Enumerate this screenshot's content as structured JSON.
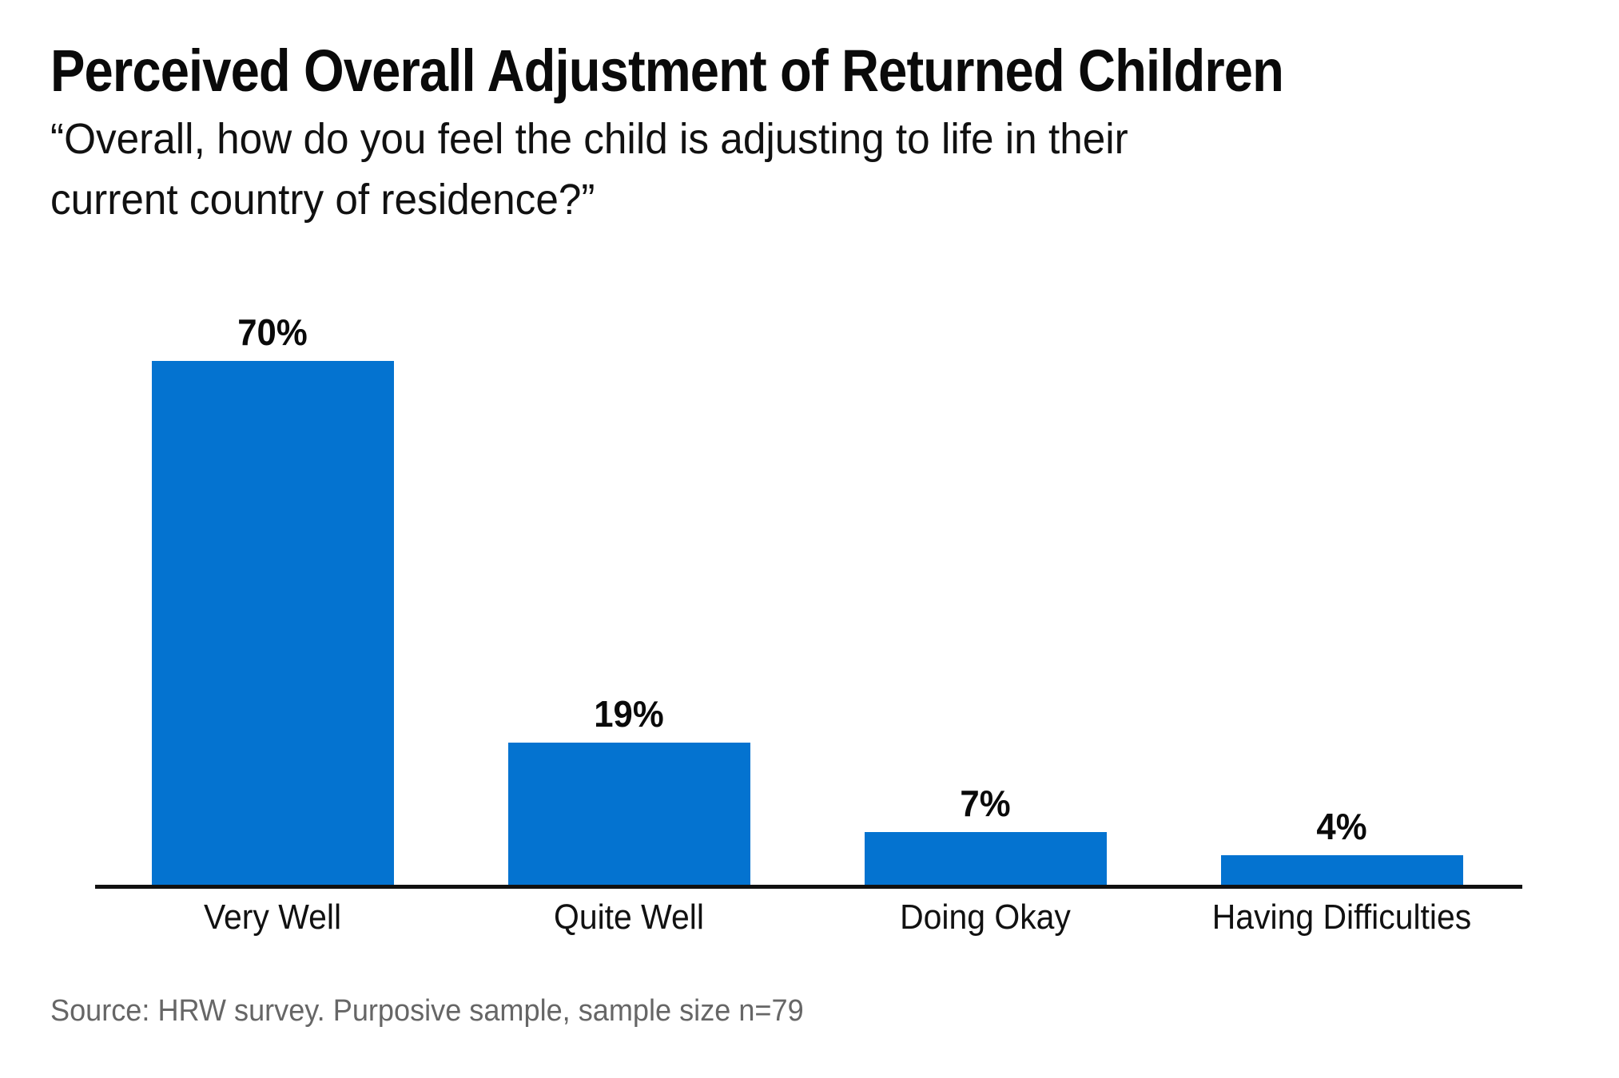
{
  "chart_data": {
    "type": "bar",
    "title": "Perceived Overall Adjustment of Returned Children",
    "subtitle": "“Overall, how do you feel the child is adjusting to life in their current country of residence?”",
    "subtitle_lines": [
      "“Overall, how do you feel the child is adjusting to life in their",
      "current country of residence?”"
    ],
    "categories": [
      "Very Well",
      "Quite Well",
      "Doing Okay",
      "Having Difficulties"
    ],
    "values": [
      70,
      19,
      7,
      4
    ],
    "value_labels": [
      "70%",
      "19%",
      "7%",
      "4%"
    ],
    "unit": "%",
    "ylim": [
      0,
      75
    ],
    "grid": false,
    "legend": false,
    "bar_color": "#0473d0",
    "axis_color": "#111111",
    "source": "Source: HRW survey. Purposive sample, sample size n=79"
  }
}
